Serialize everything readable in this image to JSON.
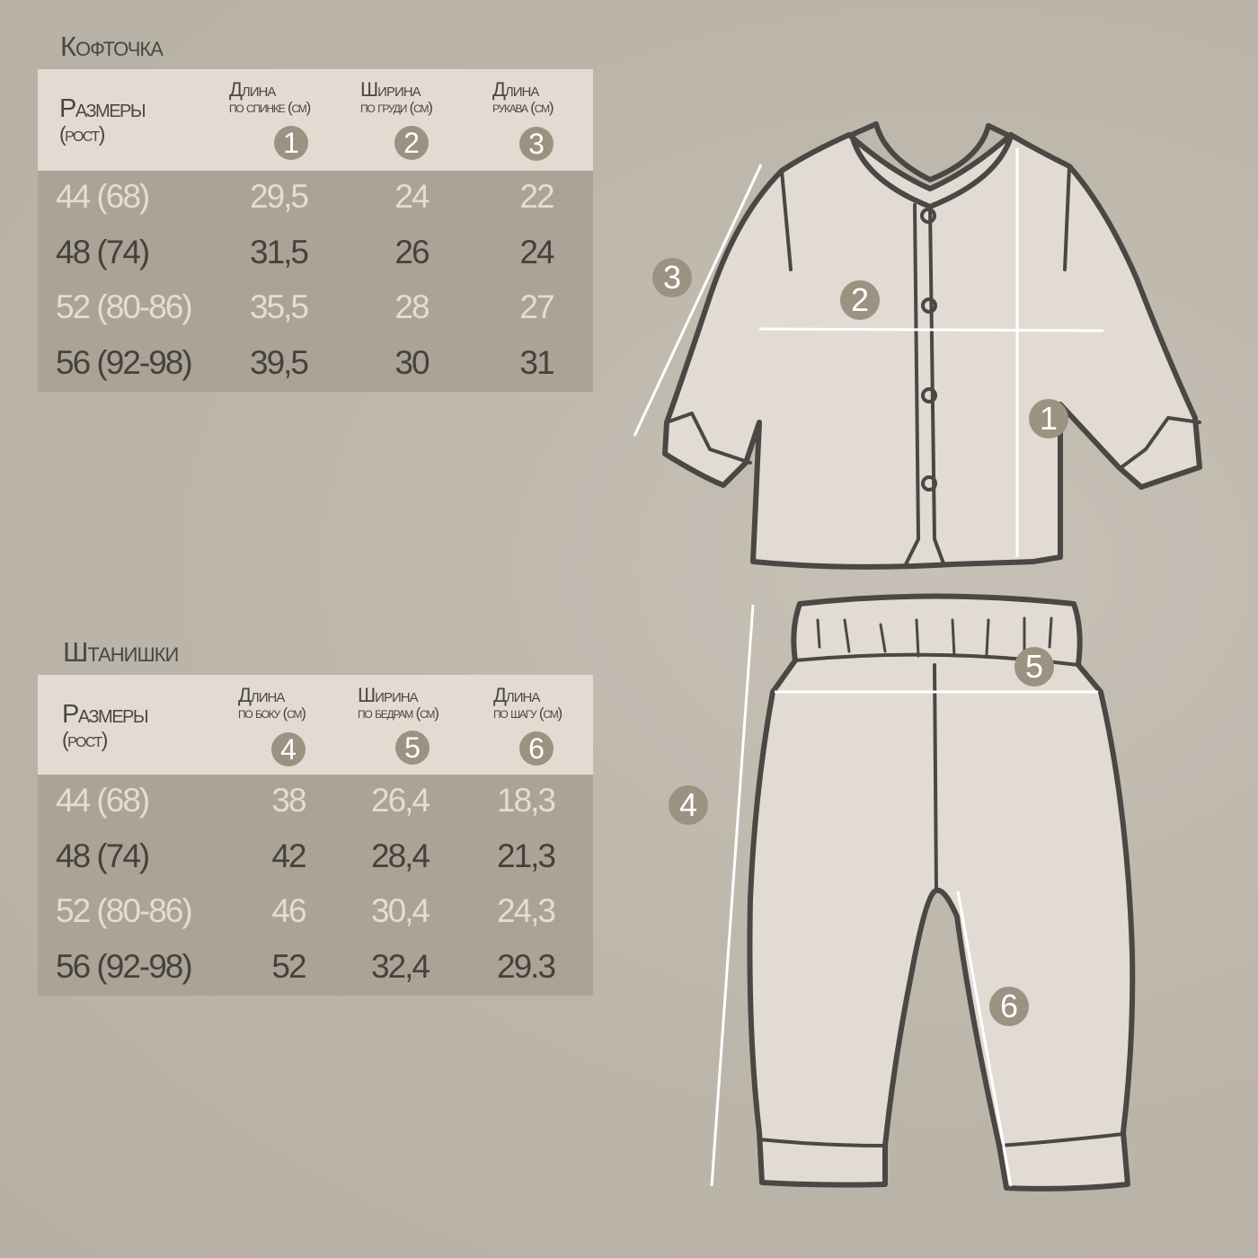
{
  "top": {
    "title": "Кофточка",
    "size_header": "Размеры",
    "size_sub": "(рост)",
    "columns": [
      {
        "label": "Длина",
        "sub": "по спинке (см)",
        "badge": "1"
      },
      {
        "label": "Ширина",
        "sub": "по груди (см)",
        "badge": "2"
      },
      {
        "label": "Длина",
        "sub": "рукава (см)",
        "badge": "3"
      }
    ],
    "rows": [
      {
        "size": "44 (68)",
        "values": [
          "29,5",
          "24",
          "22"
        ]
      },
      {
        "size": "48 (74)",
        "values": [
          "31,5",
          "26",
          "24"
        ]
      },
      {
        "size": "52 (80-86)",
        "values": [
          "35,5",
          "28",
          "27"
        ]
      },
      {
        "size": "56 (92-98)",
        "values": [
          "39,5",
          "30",
          "31"
        ]
      }
    ]
  },
  "bottom": {
    "title": "Штанишки",
    "size_header": "Размеры",
    "size_sub": "(рост)",
    "columns": [
      {
        "label": "Длина",
        "sub": "по  боку (см)",
        "badge": "4"
      },
      {
        "label": "Ширина",
        "sub": "по бедрам (см)",
        "badge": "5"
      },
      {
        "label": "Длина",
        "sub": "по шагу (см)",
        "badge": "6"
      }
    ],
    "rows": [
      {
        "size": "44 (68)",
        "values": [
          "38",
          "26,4",
          "18,3"
        ]
      },
      {
        "size": "48 (74)",
        "values": [
          "42",
          "28,4",
          "21,3"
        ]
      },
      {
        "size": "52 (80-86)",
        "values": [
          "46",
          "30,4",
          "24,3"
        ]
      },
      {
        "size": "56 (92-98)",
        "values": [
          "52",
          "32,4",
          "29.3"
        ]
      }
    ]
  },
  "diagram_markers": [
    "1",
    "2",
    "3",
    "4",
    "5",
    "6"
  ],
  "colors": {
    "background": "#bcb5a9",
    "header": "#e3dbd2",
    "table_body": "#aca397",
    "badge": "#9c9282",
    "text_dark": "#45423e",
    "text_light": "#e4ddd4"
  }
}
